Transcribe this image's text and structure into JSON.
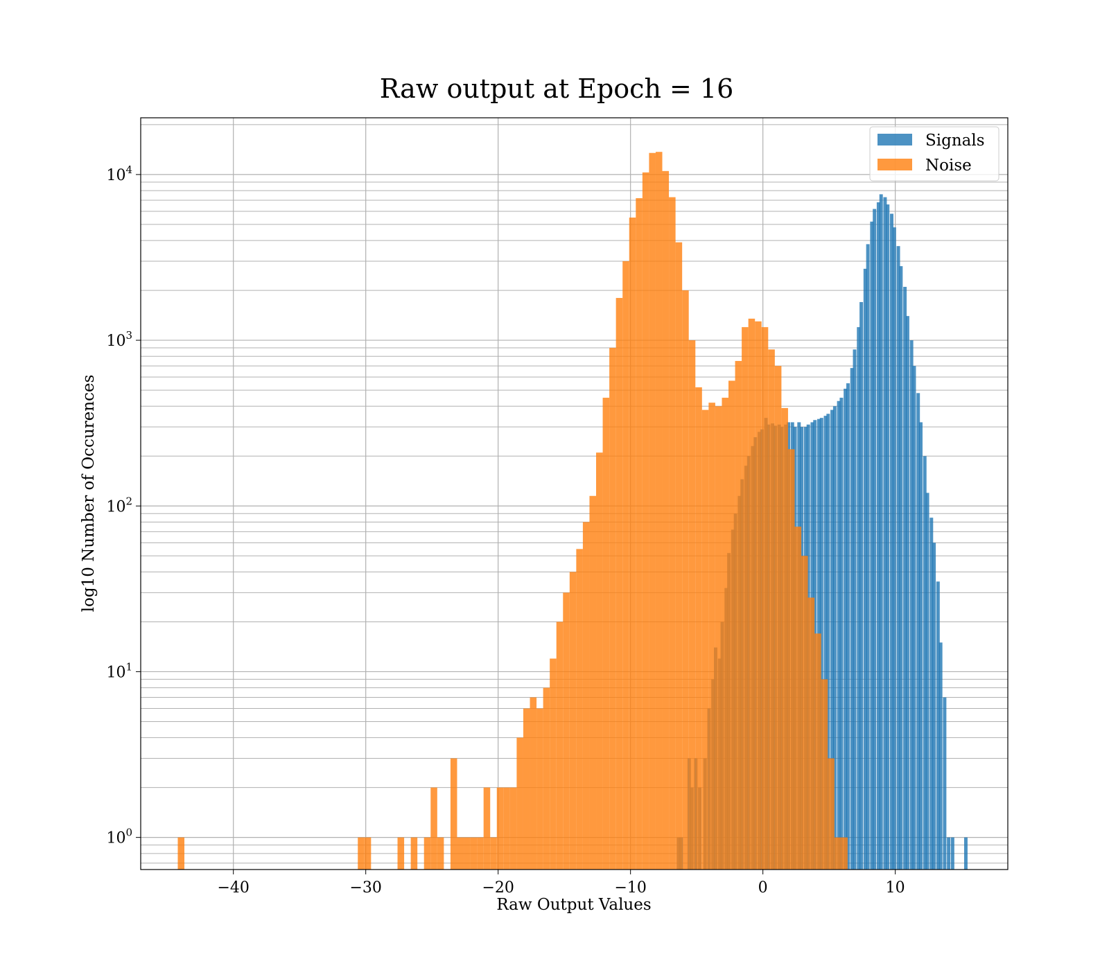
{
  "chart_data": {
    "type": "bar",
    "title": "Raw output at Epoch = 16",
    "xlabel": "Raw Output Values",
    "ylabel": "log10 Number of Occurences",
    "xlim": [
      -47,
      18.5
    ],
    "ylim": [
      0.64,
      22000
    ],
    "y_scale": "log",
    "grid": true,
    "legend_position": "top-right",
    "x_ticks": [
      {
        "value": -40,
        "label": "−40"
      },
      {
        "value": -30,
        "label": "−30"
      },
      {
        "value": -20,
        "label": "−20"
      },
      {
        "value": -10,
        "label": "−10"
      },
      {
        "value": 0,
        "label": "0"
      },
      {
        "value": 10,
        "label": "10"
      }
    ],
    "y_ticks": [
      {
        "value": 1,
        "base": "10",
        "exp": "0"
      },
      {
        "value": 10,
        "base": "10",
        "exp": "1"
      },
      {
        "value": 100,
        "base": "10",
        "exp": "2"
      },
      {
        "value": 1000,
        "base": "10",
        "exp": "3"
      },
      {
        "value": 10000,
        "base": "10",
        "exp": "4"
      }
    ],
    "series": [
      {
        "name": "Signals",
        "color": "#1f77b4",
        "opacity": 0.8,
        "bin_width": 0.26,
        "bins": [
          [
            -6.5,
            1
          ],
          [
            -6.3,
            1
          ],
          [
            -5.7,
            3
          ],
          [
            -5.5,
            2
          ],
          [
            -5.2,
            3
          ],
          [
            -4.9,
            2
          ],
          [
            -4.5,
            3
          ],
          [
            -4.2,
            6
          ],
          [
            -3.9,
            9
          ],
          [
            -3.7,
            14
          ],
          [
            -3.4,
            12
          ],
          [
            -3.2,
            20
          ],
          [
            -2.9,
            32
          ],
          [
            -2.7,
            52
          ],
          [
            -2.4,
            72
          ],
          [
            -2.2,
            90
          ],
          [
            -1.9,
            115
          ],
          [
            -1.7,
            145
          ],
          [
            -1.4,
            175
          ],
          [
            -1.2,
            200
          ],
          [
            -0.9,
            230
          ],
          [
            -0.7,
            260
          ],
          [
            -0.4,
            280
          ],
          [
            -0.2,
            290
          ],
          [
            0.1,
            340
          ],
          [
            0.3,
            310
          ],
          [
            0.6,
            315
          ],
          [
            0.8,
            305
          ],
          [
            1.1,
            310
          ],
          [
            1.3,
            300
          ],
          [
            1.6,
            310
          ],
          [
            1.8,
            320
          ],
          [
            2.1,
            320
          ],
          [
            2.3,
            300
          ],
          [
            2.6,
            320
          ],
          [
            2.8,
            300
          ],
          [
            3.1,
            300
          ],
          [
            3.3,
            310
          ],
          [
            3.6,
            320
          ],
          [
            3.8,
            330
          ],
          [
            4.1,
            335
          ],
          [
            4.3,
            340
          ],
          [
            4.6,
            350
          ],
          [
            4.8,
            360
          ],
          [
            5.1,
            380
          ],
          [
            5.3,
            400
          ],
          [
            5.6,
            430
          ],
          [
            5.8,
            450
          ],
          [
            6.1,
            510
          ],
          [
            6.3,
            550
          ],
          [
            6.6,
            680
          ],
          [
            6.8,
            880
          ],
          [
            7.1,
            1200
          ],
          [
            7.3,
            1700
          ],
          [
            7.6,
            2700
          ],
          [
            7.8,
            3800
          ],
          [
            8.1,
            5200
          ],
          [
            8.3,
            6200
          ],
          [
            8.6,
            6800
          ],
          [
            8.8,
            7600
          ],
          [
            9.1,
            7300
          ],
          [
            9.3,
            6600
          ],
          [
            9.6,
            5800
          ],
          [
            9.8,
            4800
          ],
          [
            10.1,
            3700
          ],
          [
            10.3,
            2800
          ],
          [
            10.6,
            2100
          ],
          [
            10.8,
            1400
          ],
          [
            11.1,
            1000
          ],
          [
            11.3,
            700
          ],
          [
            11.6,
            480
          ],
          [
            11.8,
            320
          ],
          [
            12.1,
            200
          ],
          [
            12.3,
            120
          ],
          [
            12.6,
            85
          ],
          [
            12.8,
            60
          ],
          [
            13.1,
            35
          ],
          [
            13.3,
            15
          ],
          [
            13.6,
            7
          ],
          [
            13.9,
            1
          ],
          [
            14.2,
            1
          ],
          [
            15.2,
            1
          ]
        ]
      },
      {
        "name": "Noise",
        "color": "#ff7f0e",
        "opacity": 0.8,
        "bin_width": 0.5,
        "bins": [
          [
            -44.2,
            1
          ],
          [
            -30.6,
            1
          ],
          [
            -30.1,
            1
          ],
          [
            -27.6,
            1
          ],
          [
            -26.6,
            1
          ],
          [
            -25.6,
            1
          ],
          [
            -25.1,
            2
          ],
          [
            -24.6,
            1
          ],
          [
            -23.6,
            3
          ],
          [
            -23.1,
            1
          ],
          [
            -22.6,
            1
          ],
          [
            -22.1,
            1
          ],
          [
            -21.6,
            1
          ],
          [
            -21.1,
            2
          ],
          [
            -20.6,
            1
          ],
          [
            -20.1,
            2
          ],
          [
            -19.6,
            2
          ],
          [
            -19.1,
            2
          ],
          [
            -18.6,
            4
          ],
          [
            -18.1,
            6
          ],
          [
            -17.6,
            7
          ],
          [
            -17.1,
            6
          ],
          [
            -16.6,
            8
          ],
          [
            -16.1,
            12
          ],
          [
            -15.6,
            20
          ],
          [
            -15.1,
            30
          ],
          [
            -14.6,
            40
          ],
          [
            -14.1,
            55
          ],
          [
            -13.6,
            80
          ],
          [
            -13.1,
            115
          ],
          [
            -12.6,
            210
          ],
          [
            -12.1,
            450
          ],
          [
            -11.6,
            900
          ],
          [
            -11.1,
            1800
          ],
          [
            -10.6,
            3000
          ],
          [
            -10.1,
            5500
          ],
          [
            -9.6,
            7200
          ],
          [
            -9.1,
            10300
          ],
          [
            -8.6,
            13500
          ],
          [
            -8.1,
            13700
          ],
          [
            -7.6,
            10500
          ],
          [
            -7.1,
            7300
          ],
          [
            -6.6,
            3900
          ],
          [
            -6.1,
            2000
          ],
          [
            -5.6,
            1000
          ],
          [
            -5.1,
            520
          ],
          [
            -4.6,
            380
          ],
          [
            -4.1,
            420
          ],
          [
            -3.6,
            400
          ],
          [
            -3.1,
            450
          ],
          [
            -2.6,
            570
          ],
          [
            -2.1,
            750
          ],
          [
            -1.6,
            1200
          ],
          [
            -1.1,
            1350
          ],
          [
            -0.6,
            1300
          ],
          [
            -0.1,
            1200
          ],
          [
            0.4,
            880
          ],
          [
            0.9,
            700
          ],
          [
            1.4,
            390
          ],
          [
            1.9,
            220
          ],
          [
            2.4,
            75
          ],
          [
            2.9,
            50
          ],
          [
            3.4,
            28
          ],
          [
            3.9,
            17
          ],
          [
            4.4,
            9
          ],
          [
            4.9,
            3
          ],
          [
            5.4,
            1
          ],
          [
            5.9,
            1
          ]
        ]
      }
    ]
  }
}
